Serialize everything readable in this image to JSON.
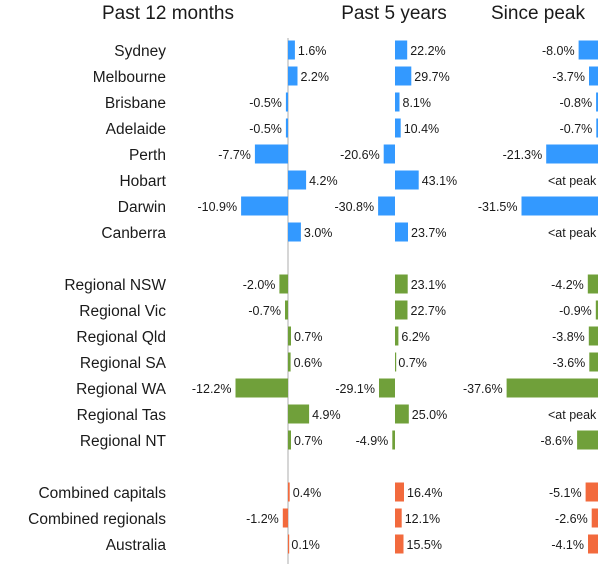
{
  "chart_data": {
    "type": "bar",
    "orientation": "horizontal",
    "categories": [
      "Sydney",
      "Melbourne",
      "Brisbane",
      "Adelaide",
      "Perth",
      "Hobart",
      "Darwin",
      "Canberra",
      "Regional NSW",
      "Regional Vic",
      "Regional Qld",
      "Regional SA",
      "Regional WA",
      "Regional Tas",
      "Regional NT",
      "Combined capitals",
      "Combined regionals",
      "Australia"
    ],
    "group_sizes": [
      8,
      7,
      3
    ],
    "colors": {
      "capitals": "#3399ff",
      "regionals": "#70a03a",
      "combined": "#f26a3d",
      "axis": "#c8c8c8"
    },
    "panels": [
      {
        "title": "Past 12 months",
        "values": [
          1.6,
          2.2,
          -0.5,
          -0.5,
          -7.7,
          4.2,
          -10.9,
          3.0,
          -2.0,
          -0.7,
          0.7,
          0.6,
          -12.2,
          4.9,
          0.7,
          0.4,
          -1.2,
          0.1
        ],
        "labels": [
          "1.6%",
          "2.2%",
          "-0.5%",
          "-0.5%",
          "-7.7%",
          "4.2%",
          "-10.9%",
          "3.0%",
          "-2.0%",
          "-0.7%",
          "0.7%",
          "0.6%",
          "-12.2%",
          "4.9%",
          "0.7%",
          "0.4%",
          "-1.2%",
          "0.1%"
        ]
      },
      {
        "title": "Past 5 years",
        "values": [
          22.2,
          29.7,
          8.1,
          10.4,
          -20.6,
          43.1,
          -30.8,
          23.7,
          23.1,
          22.7,
          6.2,
          0.7,
          -29.1,
          25.0,
          -4.9,
          16.4,
          12.1,
          15.5
        ],
        "labels": [
          "22.2%",
          "29.7%",
          "8.1%",
          "10.4%",
          "-20.6%",
          "43.1%",
          "-30.8%",
          "23.7%",
          "23.1%",
          "22.7%",
          "6.2%",
          "0.7%",
          "-29.1%",
          "25.0%",
          "-4.9%",
          "16.4%",
          "12.1%",
          "15.5%"
        ]
      },
      {
        "title": "Since peak",
        "values": [
          -8.0,
          -3.7,
          -0.8,
          -0.7,
          -21.3,
          0,
          -31.5,
          0,
          -4.2,
          -0.9,
          -3.8,
          -3.6,
          -37.6,
          0,
          -8.6,
          -5.1,
          -2.6,
          -4.1
        ],
        "labels": [
          "-8.0%",
          "-3.7%",
          "-0.8%",
          "-0.7%",
          "-21.3%",
          "<at peak",
          "-31.5%",
          "<at peak",
          "-4.2%",
          "-0.9%",
          "-3.8%",
          "-3.6%",
          "-37.6%",
          "<at peak",
          "-8.6%",
          "-5.1%",
          "-2.6%",
          "-4.1%"
        ]
      }
    ]
  }
}
